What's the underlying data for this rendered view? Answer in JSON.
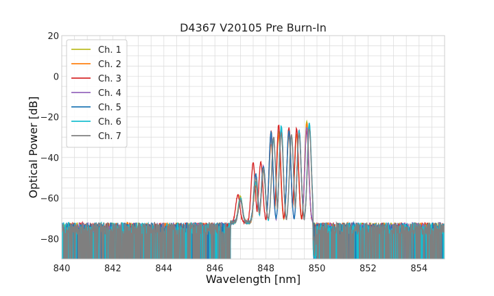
{
  "chart_data": {
    "type": "line",
    "title": "D4367 V20105 Pre Burn-In",
    "xlabel": "Wavelength [nm]",
    "ylabel": "Optical Power [dB]",
    "xlim": [
      840,
      855
    ],
    "ylim": [
      -90,
      20
    ],
    "xticks": [
      "840",
      "842",
      "844",
      "846",
      "848",
      "850",
      "852",
      "854"
    ],
    "yticks": [
      "20",
      "0",
      "−20",
      "−40",
      "−60",
      "−80"
    ],
    "grid": true,
    "legend_position": "top-left",
    "noise_floor": -72,
    "series": [
      {
        "name": "Ch. 1",
        "color": "#bcbd22",
        "peaks": [
          [
            847.0,
            -59
          ],
          [
            847.6,
            -52
          ],
          [
            847.9,
            -45
          ],
          [
            848.2,
            -31
          ],
          [
            848.5,
            -27
          ],
          [
            848.9,
            -27
          ],
          [
            849.2,
            -28
          ],
          [
            849.6,
            -22
          ]
        ]
      },
      {
        "name": "Ch. 2",
        "color": "#ff7f0e",
        "peaks": [
          [
            847.0,
            -60
          ],
          [
            847.6,
            -54
          ],
          [
            847.9,
            -47
          ],
          [
            848.2,
            -33
          ],
          [
            848.5,
            -29
          ],
          [
            848.9,
            -29
          ],
          [
            849.2,
            -29
          ],
          [
            849.6,
            -23
          ]
        ]
      },
      {
        "name": "Ch. 3",
        "color": "#d62728",
        "peaks": [
          [
            846.9,
            -58
          ],
          [
            847.5,
            -42
          ],
          [
            847.8,
            -42
          ],
          [
            848.2,
            -27
          ],
          [
            848.5,
            -24
          ],
          [
            848.9,
            -25
          ],
          [
            849.2,
            -26
          ],
          [
            849.6,
            -27
          ]
        ]
      },
      {
        "name": "Ch. 4",
        "color": "#9467bd",
        "peaks": [
          [
            847.0,
            -61
          ],
          [
            847.6,
            -49
          ],
          [
            847.9,
            -44
          ],
          [
            848.2,
            -30
          ],
          [
            848.6,
            -26
          ],
          [
            848.9,
            -27
          ],
          [
            849.3,
            -27
          ],
          [
            849.6,
            -25
          ]
        ]
      },
      {
        "name": "Ch. 5",
        "color": "#1f77b4",
        "peaks": [
          [
            847.0,
            -60
          ],
          [
            847.6,
            -48
          ],
          [
            847.9,
            -44
          ],
          [
            848.2,
            -28
          ],
          [
            848.6,
            -25
          ],
          [
            848.9,
            -27
          ],
          [
            849.3,
            -27
          ],
          [
            849.7,
            -24
          ]
        ]
      },
      {
        "name": "Ch. 6",
        "color": "#17becf",
        "peaks": [
          [
            847.0,
            -60
          ],
          [
            847.6,
            -52
          ],
          [
            847.9,
            -46
          ],
          [
            848.3,
            -31
          ],
          [
            848.6,
            -25
          ],
          [
            849.0,
            -29
          ],
          [
            849.3,
            -27
          ],
          [
            849.7,
            -23
          ]
        ]
      },
      {
        "name": "Ch. 7",
        "color": "#7f7f7f",
        "peaks": [
          [
            847.0,
            -61
          ],
          [
            847.6,
            -50
          ],
          [
            847.9,
            -46
          ],
          [
            848.3,
            -30
          ],
          [
            848.6,
            -28
          ],
          [
            849.0,
            -29
          ],
          [
            849.3,
            -28
          ],
          [
            849.7,
            -26
          ]
        ]
      }
    ]
  }
}
